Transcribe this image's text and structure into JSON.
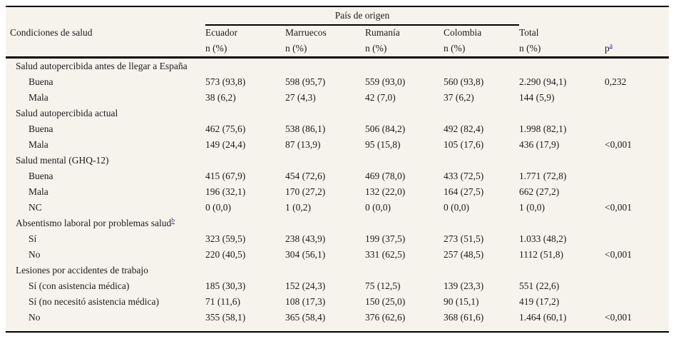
{
  "table": {
    "group_header": "País de origen",
    "col0_header": "Condiciones de salud",
    "columns": [
      {
        "label": "Ecuador",
        "sub": "n (%)"
      },
      {
        "label": "Marruecos",
        "sub": "n (%)"
      },
      {
        "label": "Rumanía",
        "sub": "n (%)"
      },
      {
        "label": "Colombia",
        "sub": "n (%)"
      },
      {
        "label": "Total",
        "sub": "n (%)"
      }
    ],
    "p_header": {
      "label": "p",
      "sup": "a"
    },
    "rows": [
      {
        "type": "section",
        "label": "Salud autopercibida antes de llegar a España"
      },
      {
        "type": "item",
        "label": "Buena",
        "values": [
          "573 (93,8)",
          "598 (95,7)",
          "559 (93,0)",
          "560 (93,8)",
          "2.290 (94,1)",
          "0,232"
        ]
      },
      {
        "type": "item",
        "label": "Mala",
        "values": [
          "38 (6,2)",
          "27 (4,3)",
          "42 (7,0)",
          "37 (6,2)",
          "144 (5,9)",
          ""
        ]
      },
      {
        "type": "section",
        "label": "Salud autopercibida actual"
      },
      {
        "type": "item",
        "label": "Buena",
        "values": [
          "462 (75,6)",
          "538 (86,1)",
          "506 (84,2)",
          "492 (82,4)",
          "1.998 (82,1)",
          ""
        ]
      },
      {
        "type": "item",
        "label": "Mala",
        "values": [
          "149 (24,4)",
          "87 (13,9)",
          "95 (15,8)",
          "105 (17,6)",
          "436 (17,9)",
          "<0,001"
        ]
      },
      {
        "type": "section",
        "label": "Salud mental (GHQ-12)"
      },
      {
        "type": "item",
        "label": "Buena",
        "values": [
          "415 (67,9)",
          "454 (72,6)",
          "469 (78,0)",
          "433 (72,5)",
          "1.771 (72,8)",
          ""
        ]
      },
      {
        "type": "item",
        "label": "Mala",
        "values": [
          "196 (32,1)",
          "170 (27,2)",
          "132 (22,0)",
          "164 (27,5)",
          "662 (27,2)",
          ""
        ]
      },
      {
        "type": "item",
        "label": "NC",
        "values": [
          "0 (0,0)",
          "1 (0,2)",
          "0 (0,0)",
          "0 (0,0)",
          "1 (0,0)",
          "<0,001"
        ]
      },
      {
        "type": "section",
        "label": "Absentismo laboral por problemas salud",
        "sup": "b"
      },
      {
        "type": "item",
        "label": "Sí",
        "values": [
          "323 (59,5)",
          "238 (43,9)",
          "199 (37,5)",
          "273 (51,5)",
          "1.033 (48,2)",
          ""
        ]
      },
      {
        "type": "item",
        "label": "No",
        "values": [
          "220 (40,5)",
          "304 (56,1)",
          "331 (62,5)",
          "257 (48,5)",
          "1112 (51,8)",
          "<0,001"
        ]
      },
      {
        "type": "section",
        "label": "Lesiones por accidentes de trabajo"
      },
      {
        "type": "item",
        "label": "Sí (con asistencia médica)",
        "values": [
          "185 (30,3)",
          "152 (24,3)",
          "75 (12,5)",
          "139 (23,3)",
          "551 (22,6)",
          ""
        ]
      },
      {
        "type": "item",
        "label": "Sí (no necesitó asistencia médica)",
        "values": [
          "71 (11,6)",
          "108 (17,3)",
          "150 (25,0)",
          "90 (15,1)",
          "419 (17,2)",
          ""
        ]
      },
      {
        "type": "item",
        "label": "No",
        "values": [
          "355 (58,1)",
          "365 (58,4)",
          "376 (62,6)",
          "368 (61,6)",
          "1.464 (60,1)",
          "<0,001"
        ]
      }
    ]
  },
  "colors": {
    "table_background": "#f6f3ec",
    "text": "#1c1c1c",
    "rule": "#000000",
    "footnote_link": "#3333cc"
  }
}
